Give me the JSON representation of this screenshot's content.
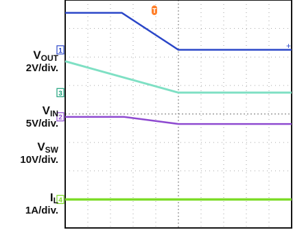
{
  "colors": {
    "vout": "#2a46c8",
    "vin": "#7fe0c4",
    "vin_marker": "#1aa07a",
    "vsw": "#8e4ad0",
    "il": "#7ddc28",
    "trigger": "#ff7f2a",
    "grid": "#888888",
    "frame": "#111111"
  },
  "channels": [
    {
      "id": "vout",
      "name": "V",
      "sub": "OUT",
      "scale": "2V/div.",
      "marker": "1"
    },
    {
      "id": "vin",
      "name": "V",
      "sub": "IN",
      "scale": "5V/div.",
      "marker": "3"
    },
    {
      "id": "vsw",
      "name": "V",
      "sub": "SW",
      "scale": "10V/div.",
      "marker": "2"
    },
    {
      "id": "il",
      "name": "I",
      "sub": "L",
      "scale": "1A/div.",
      "marker": "4"
    }
  ],
  "trigger_marker": "T",
  "chart_data": {
    "type": "line",
    "grid": true,
    "xlim": [
      0,
      10
    ],
    "ylim": [
      0,
      8
    ],
    "x_divisions": 10,
    "y_divisions": 8,
    "series": [
      {
        "id": "vout",
        "x": [
          0,
          2.5,
          5,
          10
        ],
        "y": [
          7.55,
          7.55,
          6.25,
          6.25
        ]
      },
      {
        "id": "vin",
        "x": [
          0,
          5,
          10
        ],
        "y": [
          5.85,
          4.75,
          4.75
        ]
      },
      {
        "id": "vsw",
        "x": [
          0,
          2.6,
          5,
          10
        ],
        "y": [
          3.9,
          3.9,
          3.65,
          3.65
        ]
      },
      {
        "id": "il",
        "x": [
          0,
          10
        ],
        "y": [
          1.0,
          1.0
        ]
      }
    ]
  }
}
